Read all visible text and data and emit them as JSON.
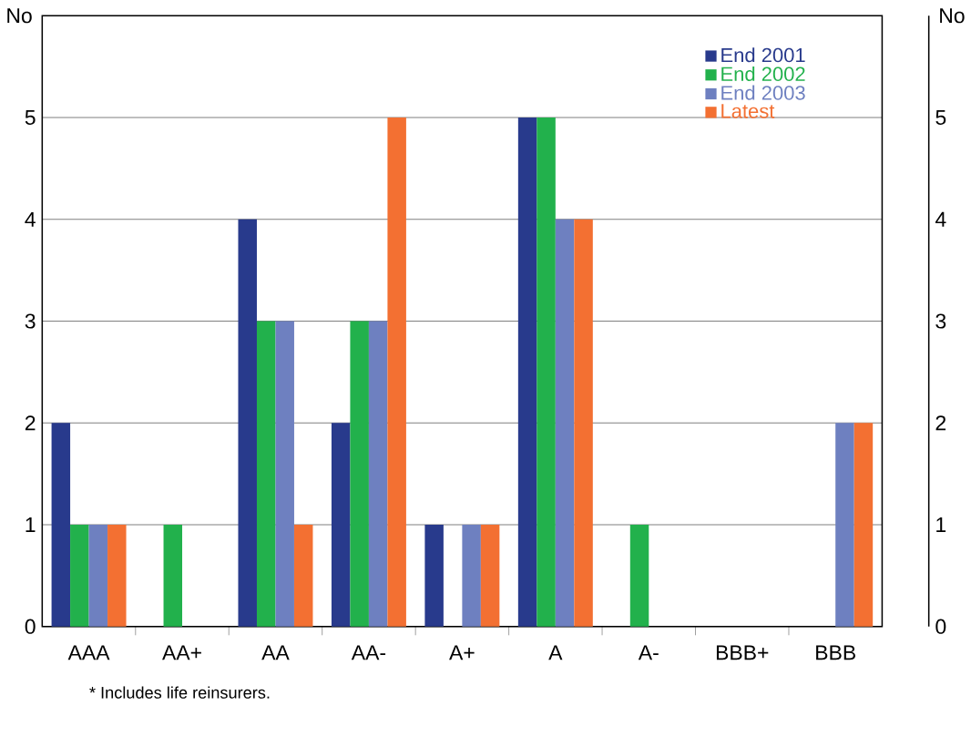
{
  "chart_data": {
    "type": "bar",
    "ylabel": "No",
    "y2label": "No",
    "categories": [
      "AAA",
      "AA+",
      "AA",
      "AA-",
      "A+",
      "A",
      "A-",
      "BBB+",
      "BBB"
    ],
    "series": [
      {
        "name": "End 2001",
        "color": "#283a8c",
        "values": [
          2,
          0,
          4,
          2,
          1,
          5,
          0,
          0,
          0
        ]
      },
      {
        "name": "End 2002",
        "color": "#22b14c",
        "values": [
          1,
          1,
          3,
          3,
          0,
          5,
          1,
          0,
          0
        ]
      },
      {
        "name": "End 2003",
        "color": "#6e80c0",
        "values": [
          1,
          0,
          3,
          3,
          1,
          4,
          0,
          0,
          2
        ]
      },
      {
        "name": "Latest",
        "color": "#f37032",
        "values": [
          1,
          0,
          1,
          5,
          1,
          4,
          0,
          0,
          2
        ]
      }
    ],
    "ylim": [
      0,
      6
    ],
    "yticks": [
      0,
      1,
      2,
      3,
      4,
      5
    ],
    "y2lim": [
      0,
      6
    ],
    "y2ticks": [
      0,
      1,
      2,
      3,
      4,
      5
    ],
    "grid": "y",
    "legend": "top right",
    "annotations": [
      "* Includes life reinsurers."
    ]
  }
}
